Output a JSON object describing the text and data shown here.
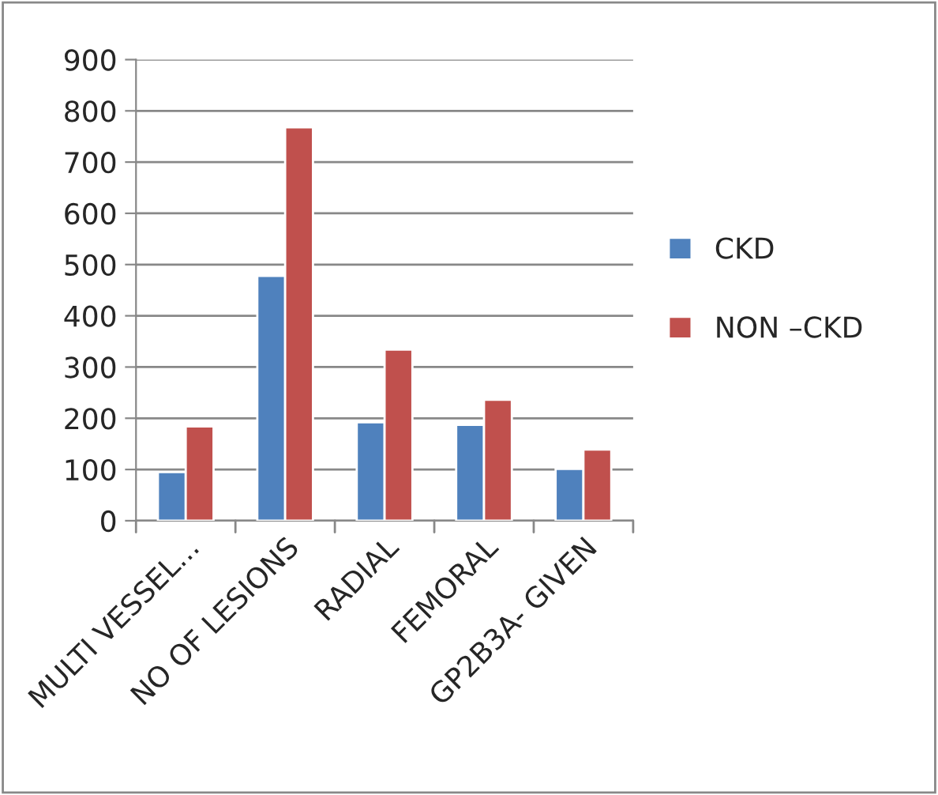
{
  "chart_data": {
    "type": "bar",
    "categories": [
      "MULTI VESSEL...",
      "NO OF LESIONS",
      "RADIAL",
      "FEMORAL",
      "GP2B3A- GIVEN"
    ],
    "series": [
      {
        "name": "CKD",
        "color": "#4f81bd",
        "values": [
          95,
          478,
          192,
          187,
          101
        ]
      },
      {
        "name": "NON –CKD",
        "color": "#c0504d",
        "values": [
          184,
          768,
          334,
          236,
          139
        ]
      }
    ],
    "ylim": [
      0,
      900
    ],
    "yticks": [
      0,
      100,
      200,
      300,
      400,
      500,
      600,
      700,
      800,
      900
    ],
    "grid": "y",
    "legend": "right"
  }
}
